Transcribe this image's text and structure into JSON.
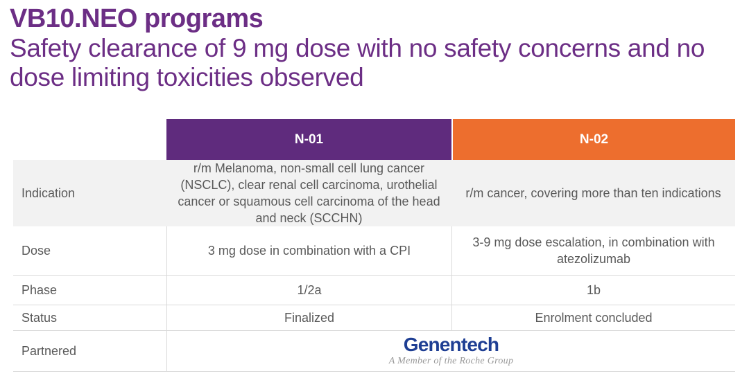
{
  "slide": {
    "title": "VB10.NEO programs",
    "subtitle": "Safety clearance of 9 mg dose with no safety concerns and no\ndose limiting toxicities observed"
  },
  "colors": {
    "title_purple": "#6c2e85",
    "header_purple": "#5f2b7d",
    "header_orange": "#ed6e2e",
    "indication_row_gray": "#f2f2f2",
    "table_text_gray": "#595959",
    "grid_line_gray": "#d9d9d9",
    "genentech_blue": "#1e3e93",
    "tagline_gray": "#999999"
  },
  "table": {
    "columns": [
      {
        "label": "N-01"
      },
      {
        "label": "N-02"
      }
    ],
    "rows": [
      {
        "label": "Indication",
        "n01": "r/m Melanoma, non-small cell lung cancer (NSCLC), clear renal cell carcinoma, urothelial cancer or squamous cell carcinoma of the head and neck (SCCHN)",
        "n02": "r/m cancer, covering more than ten indications"
      },
      {
        "label": "Dose",
        "n01": "3 mg dose in combination with a CPI",
        "n02": "3-9 mg dose escalation, in combination with atezolizumab"
      },
      {
        "label": "Phase",
        "n01": "1/2a",
        "n02": "1b"
      },
      {
        "label": "Status",
        "n01": "Finalized",
        "n02": "Enrolment concluded"
      },
      {
        "label": "Partnered",
        "partner": {
          "name": "Genentech",
          "tagline": "A Member of the Roche Group"
        }
      }
    ]
  }
}
